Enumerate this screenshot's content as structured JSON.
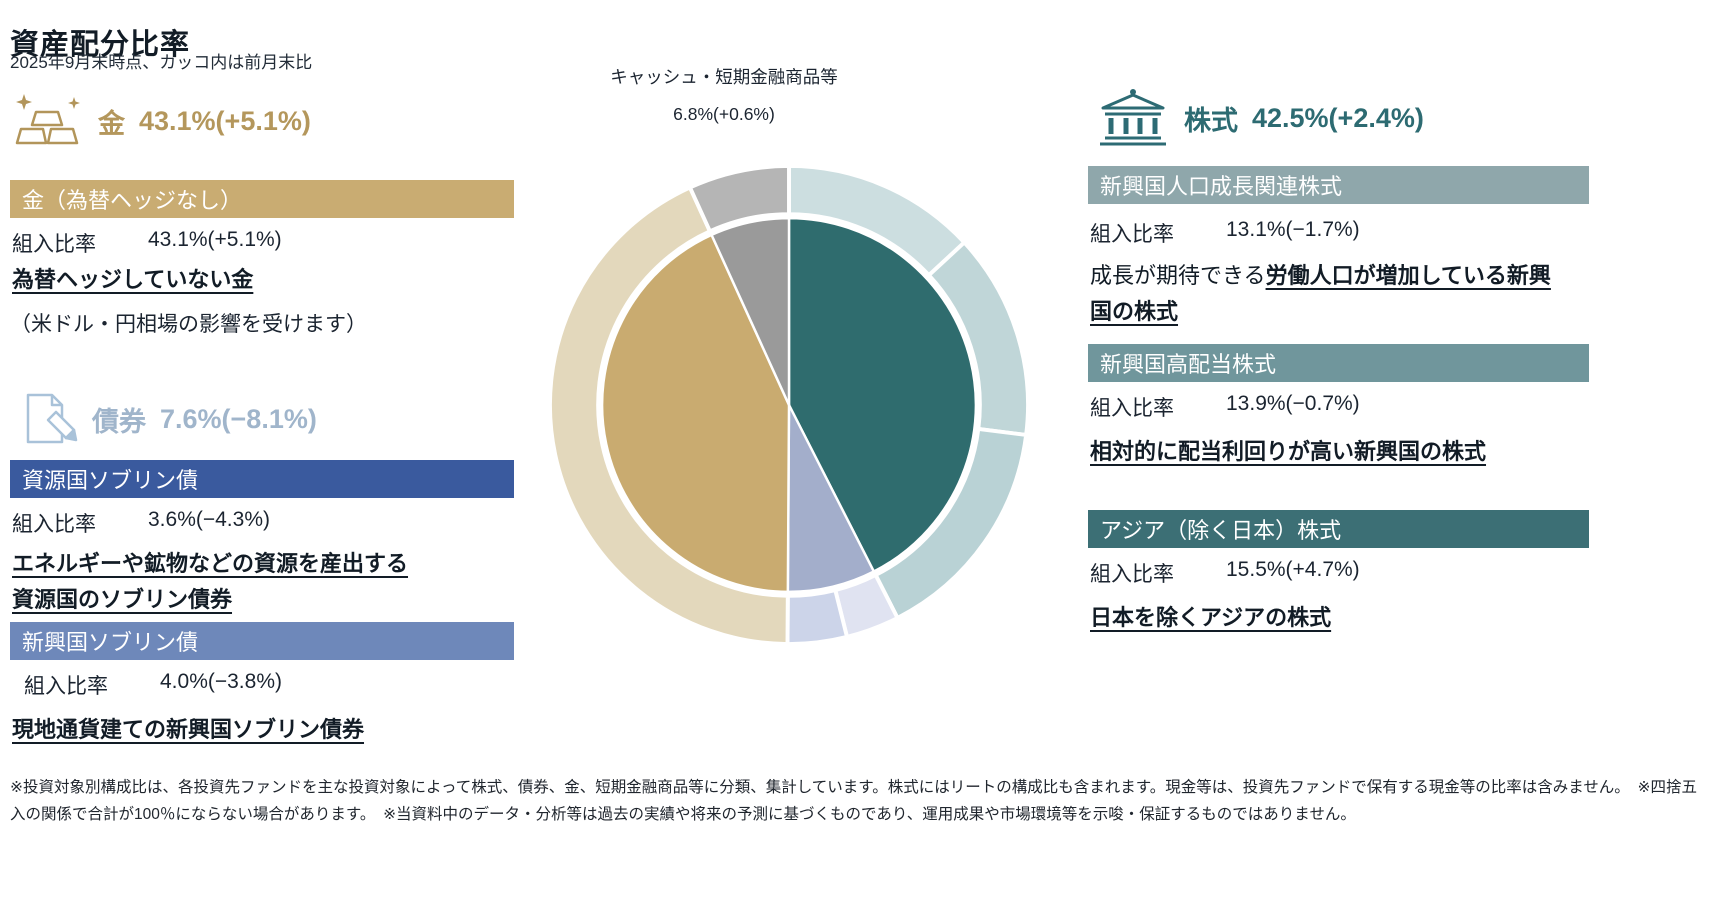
{
  "page": {
    "title": "資産配分比率",
    "subtitle": "2025年9月末時点、カッコ内は前月末比"
  },
  "gold": {
    "label": "金",
    "value": "43.1%(+5.1%)",
    "accent_color": "#b4975c",
    "fund": {
      "header": "金（為替ヘッジなし）",
      "header_color": "#c9ac72",
      "ratio_label": "組入比率",
      "ratio_value": "43.1%(+5.1%)",
      "desc_bold": "為替ヘッジしていない金",
      "desc_note": "（米ドル・円相場の影響を受けます）"
    }
  },
  "bonds": {
    "label": "債券",
    "value": "7.6%(−8.1%)",
    "accent_color": "#a0b5cb",
    "funds": [
      {
        "header": "資源国ソブリン債",
        "header_color": "#3a5a9e",
        "ratio_label": "組入比率",
        "ratio_value": "3.6%(−4.3%)",
        "desc_bold": "エネルギーや鉱物などの資源を産出する\n資源国のソブリン債券"
      },
      {
        "header": "新興国ソブリン債",
        "header_color": "#6e88ba",
        "ratio_label": "組入比率",
        "ratio_value": "4.0%(−3.8%)",
        "desc_bold": "現地通貨建ての新興国ソブリン債券"
      }
    ]
  },
  "stocks": {
    "label": "株式",
    "value": "42.5%(+2.4%)",
    "accent_color": "#2d6b72",
    "funds": [
      {
        "header": "新興国人口成長関連株式",
        "header_color": "#8fa7ab",
        "ratio_label": "組入比率",
        "ratio_value": "13.1%(−1.7%)",
        "desc_prefix": "成長が期待できる",
        "desc_bold": "労働人口が増加している新興国の株式"
      },
      {
        "header": "新興国高配当株式",
        "header_color": "#70969c",
        "ratio_label": "組入比率",
        "ratio_value": "13.9%(−0.7%)",
        "desc_prefix": "",
        "desc_bold": "相対的に配当利回りが高い新興国の株式"
      },
      {
        "header": "アジア（除く日本）株式",
        "header_color": "#3c6f75",
        "ratio_label": "組入比率",
        "ratio_value": "15.5%(+4.7%)",
        "desc_prefix": "",
        "desc_bold": "日本を除くアジアの株式"
      }
    ]
  },
  "chart_data": {
    "type": "pie",
    "subtype": "nested-donut",
    "units": "%",
    "start": "top",
    "direction": "clockwise",
    "callout": {
      "label": "キャッシュ・短期金融商品等",
      "value": "6.8%(+0.6%)"
    },
    "inner_segments": [
      {
        "name": "株式",
        "value": 42.5,
        "change": "+2.4",
        "color": "#2f6c6e"
      },
      {
        "name": "債券",
        "value": 7.6,
        "change": "−8.1",
        "color": "#a3aecb"
      },
      {
        "name": "金",
        "value": 43.1,
        "change": "+5.1",
        "color": "#c9ab70"
      },
      {
        "name": "キャッシュ・短期金融商品等",
        "value": 6.8,
        "change": "+0.6",
        "color": "#9a9a9a"
      }
    ],
    "outer_segments": [
      {
        "name": "新興国人口成長関連株式",
        "value": 13.1,
        "color": "#ccdee0"
      },
      {
        "name": "新興国高配当株式",
        "value": 13.9,
        "color": "#c0d6d8"
      },
      {
        "name": "アジア（除く日本）株式",
        "value": 15.5,
        "color": "#b9d2d5"
      },
      {
        "name": "資源国ソブリン債",
        "value": 3.6,
        "color": "#e0e3f1"
      },
      {
        "name": "新興国ソブリン債",
        "value": 4.0,
        "color": "#ccd4e9"
      },
      {
        "name": "金（為替ヘッジなし）",
        "value": 43.1,
        "color": "#e3d8bc"
      },
      {
        "name": "キャッシュ・短期金融商品等",
        "value": 6.8,
        "color": "#b5b5b5"
      }
    ]
  },
  "footnote": "※投資対象別構成比は、各投資先ファンドを主な投資対象によって株式、債券、金、短期金融商品等に分類、集計しています。株式にはリートの構成比も含まれます。現金等は、投資先ファンドで保有する現金等の比率は含みません。　※四捨五入の関係で合計が100％にならない場合があります。　※当資料中のデータ・分析等は過去の実績や将来の予測に基づくものであり、運用成果や市場環境等を示唆・保証するものではありません。"
}
